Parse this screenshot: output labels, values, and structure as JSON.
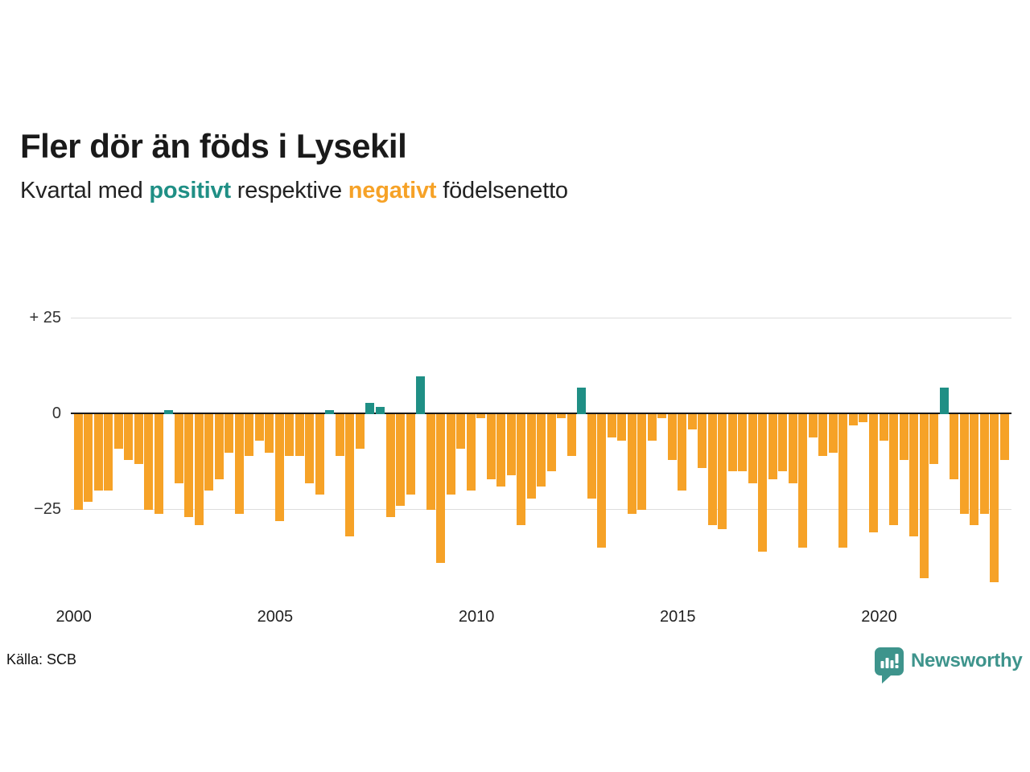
{
  "header": {
    "title": "Fler dör än föds i Lysekil",
    "subtitle": {
      "prefix": "Kvartal med ",
      "positive_word": "positivt",
      "middle": " respektive ",
      "negative_word": "negativt",
      "suffix": " födelsenetto"
    }
  },
  "colors": {
    "positive": "#1F8F85",
    "negative": "#F6A227",
    "brand": "#3E948C",
    "title_text": "#1A1A1A",
    "axis_text": "#333333",
    "gridline": "#DDDDDD",
    "zero_line": "#1A1A1A"
  },
  "chart_data": {
    "type": "bar",
    "title": "Fler dör än föds i Lysekil",
    "subtitle": "Kvartal med positivt respektive negativt födelsenetto",
    "series_name": "Födelsenetto per kvartal",
    "xlabel": "",
    "ylabel": "",
    "ylim": [
      -48,
      28
    ],
    "grid": "horizontal",
    "legend": "none",
    "positive_color_meaning": "positivt födelsenetto",
    "negative_color_meaning": "negativt födelsenetto",
    "yticks": [
      {
        "label": "+ 25",
        "value": 25
      },
      {
        "label": "0",
        "value": 0
      },
      {
        "label": "−25",
        "value": -25
      }
    ],
    "xticks": [
      {
        "label": "2000",
        "quarter_index": 0
      },
      {
        "label": "2005",
        "quarter_index": 20
      },
      {
        "label": "2010",
        "quarter_index": 40
      },
      {
        "label": "2015",
        "quarter_index": 60
      },
      {
        "label": "2020",
        "quarter_index": 80
      }
    ],
    "quarters": [
      "2000Q1",
      "2000Q2",
      "2000Q3",
      "2000Q4",
      "2001Q1",
      "2001Q2",
      "2001Q3",
      "2001Q4",
      "2002Q1",
      "2002Q2",
      "2002Q3",
      "2002Q4",
      "2003Q1",
      "2003Q2",
      "2003Q3",
      "2003Q4",
      "2004Q1",
      "2004Q2",
      "2004Q3",
      "2004Q4",
      "2005Q1",
      "2005Q2",
      "2005Q3",
      "2005Q4",
      "2006Q1",
      "2006Q2",
      "2006Q3",
      "2006Q4",
      "2007Q1",
      "2007Q2",
      "2007Q3",
      "2007Q4",
      "2008Q1",
      "2008Q2",
      "2008Q3",
      "2008Q4",
      "2009Q1",
      "2009Q2",
      "2009Q3",
      "2009Q4",
      "2010Q1",
      "2010Q2",
      "2010Q3",
      "2010Q4",
      "2011Q1",
      "2011Q2",
      "2011Q3",
      "2011Q4",
      "2012Q1",
      "2012Q2",
      "2012Q3",
      "2012Q4",
      "2013Q1",
      "2013Q2",
      "2013Q3",
      "2013Q4",
      "2014Q1",
      "2014Q2",
      "2014Q3",
      "2014Q4",
      "2015Q1",
      "2015Q2",
      "2015Q3",
      "2015Q4",
      "2016Q1",
      "2016Q2",
      "2016Q3",
      "2016Q4",
      "2017Q1",
      "2017Q2",
      "2017Q3",
      "2017Q4",
      "2018Q1",
      "2018Q2",
      "2018Q3",
      "2018Q4",
      "2019Q1",
      "2019Q2",
      "2019Q3",
      "2019Q4",
      "2020Q1",
      "2020Q2",
      "2020Q3",
      "2020Q4",
      "2021Q1",
      "2021Q2",
      "2021Q3",
      "2021Q4",
      "2022Q1",
      "2022Q2",
      "2022Q3",
      "2022Q4",
      "2023Q1"
    ],
    "values": [
      -25,
      -23,
      -20,
      -20,
      -9,
      -12,
      -13,
      -25,
      -26,
      1,
      -18,
      -27,
      -29,
      -20,
      -17,
      -10,
      -26,
      -11,
      -7,
      -10,
      -28,
      -11,
      -11,
      -18,
      -21,
      1,
      -11,
      -32,
      -9,
      3,
      2,
      -27,
      -24,
      -21,
      10,
      -25,
      -39,
      -21,
      -9,
      -20,
      -1,
      -17,
      -19,
      -16,
      -29,
      -22,
      -19,
      -15,
      -1,
      -11,
      7,
      -22,
      -35,
      -6,
      -7,
      -26,
      -25,
      -7,
      -1,
      -12,
      -20,
      -4,
      -14,
      -29,
      -30,
      -15,
      -15,
      -18,
      -36,
      -17,
      -15,
      -18,
      -35,
      -6,
      -11,
      -10,
      -35,
      -3,
      -2,
      -31,
      -7,
      -29,
      -12,
      -32,
      -43,
      -13,
      7,
      -17,
      -26,
      -29,
      -26,
      -44,
      -12
    ]
  },
  "footer": {
    "source": "Källa: SCB",
    "brand": "Newsworthy"
  }
}
